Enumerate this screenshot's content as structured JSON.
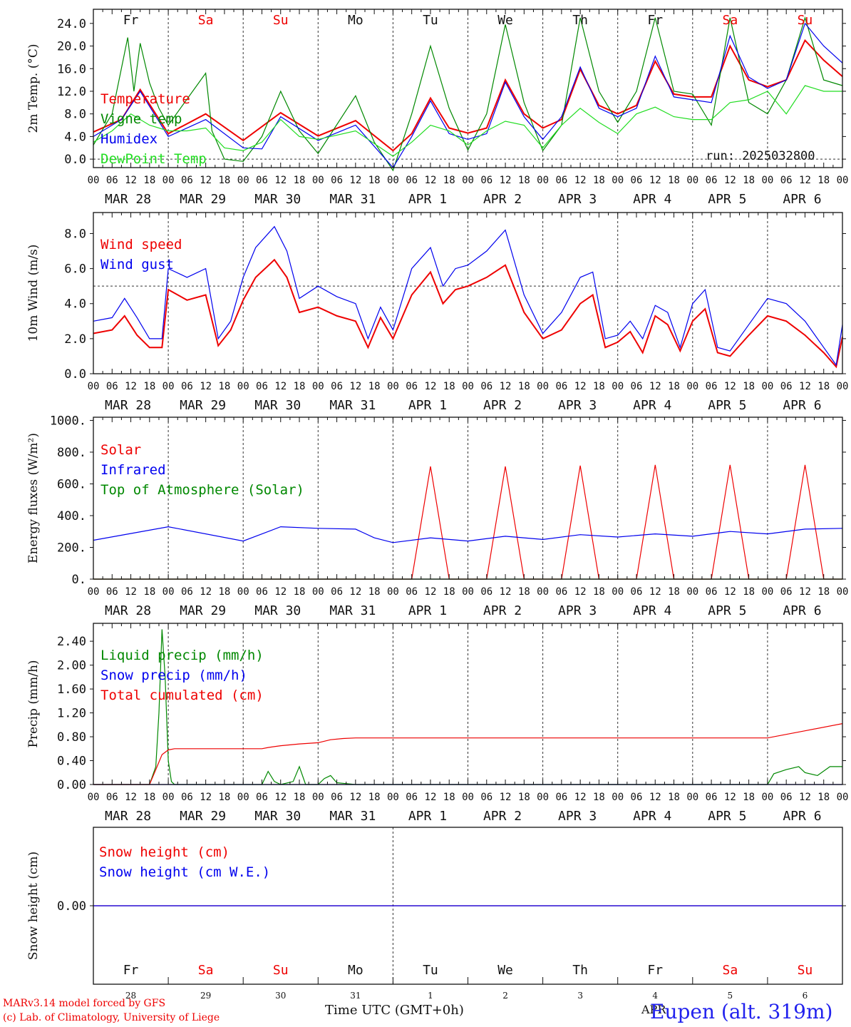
{
  "run_label": "run: 2025032800",
  "credit_line1": "MARv3.14 model forced by GFS",
  "credit_line2": "(c) Lab. of Climatology, University of Liege",
  "x_title": "Time UTC (GMT+0h)",
  "station": "Eupen (alt. 319m)",
  "bottom_month": "APR",
  "colors": {
    "red": "#ee0000",
    "blue": "#0000ee",
    "green": "#008800",
    "lightgreen": "#22dd22",
    "dark": "#333333",
    "title": "#2222ee"
  },
  "days": [
    {
      "dow": "Fr",
      "date": "MAR 28",
      "num": "28",
      "weekend": false
    },
    {
      "dow": "Sa",
      "date": "MAR 29",
      "num": "29",
      "weekend": true
    },
    {
      "dow": "Su",
      "date": "MAR 30",
      "num": "30",
      "weekend": true
    },
    {
      "dow": "Mo",
      "date": "MAR 31",
      "num": "31",
      "weekend": false
    },
    {
      "dow": "Tu",
      "date": "APR  1",
      "num": "1",
      "weekend": false
    },
    {
      "dow": "We",
      "date": "APR  2",
      "num": "2",
      "weekend": false
    },
    {
      "dow": "Th",
      "date": "APR  3",
      "num": "3",
      "weekend": false
    },
    {
      "dow": "Fr",
      "date": "APR  4",
      "num": "4",
      "weekend": false
    },
    {
      "dow": "Sa",
      "date": "APR  5",
      "num": "5",
      "weekend": true
    },
    {
      "dow": "Su",
      "date": "APR  6",
      "num": "6",
      "weekend": true
    }
  ],
  "hour_labels": [
    "00",
    "06",
    "12",
    "18"
  ],
  "chart_data": [
    {
      "type": "line",
      "ylabel": "2m Temp. (°C)",
      "ylim": [
        -1.5,
        26.5
      ],
      "yticks": [
        0,
        4,
        8,
        12,
        16,
        20,
        24
      ],
      "ytick_labels": [
        "0.0",
        "4.0",
        "8.0",
        "12.0",
        "16.0",
        "20.0",
        "24.0"
      ],
      "ref_line": 0,
      "show_dow": true,
      "x_unit": "hours since MAR 28 00 UTC",
      "series": [
        {
          "name": "Temperature",
          "color": "#ee0000",
          "x": [
            0,
            9,
            15,
            24,
            36,
            48,
            60,
            72,
            84,
            96,
            102,
            108,
            114,
            120,
            126,
            132,
            138,
            144,
            150,
            156,
            162,
            168,
            174,
            180,
            186,
            192,
            198,
            204,
            210,
            216,
            222,
            228,
            234,
            240
          ],
          "y": [
            4.8,
            7,
            12.3,
            4.5,
            8,
            3.3,
            8.2,
            4.1,
            6.8,
            1.5,
            4.5,
            10.8,
            5.5,
            4.6,
            5.5,
            14,
            8,
            5.5,
            7,
            15.9,
            9.5,
            8,
            9.5,
            17.3,
            11.5,
            11,
            11,
            20,
            14,
            12.8,
            14,
            21,
            17.5,
            14.6
          ]
        },
        {
          "name": "Vigne temp",
          "color": "#008800",
          "x": [
            0,
            6,
            11,
            13,
            15,
            18,
            21,
            24,
            36,
            38,
            42,
            48,
            54,
            60,
            66,
            72,
            84,
            90,
            96,
            102,
            108,
            114,
            120,
            126,
            132,
            138,
            144,
            150,
            156,
            162,
            168,
            174,
            180,
            186,
            192,
            198,
            204,
            210,
            216,
            222,
            228,
            234,
            240
          ],
          "y": [
            2.5,
            8,
            21.5,
            12,
            20.5,
            13.5,
            9,
            6,
            15.2,
            5,
            0,
            -0.4,
            4,
            12,
            5,
            1,
            11.2,
            3,
            -2,
            8,
            20,
            9,
            1.6,
            8,
            23.8,
            10,
            1.5,
            6,
            25,
            12,
            6.5,
            12,
            25,
            12,
            11.5,
            6,
            25,
            10,
            8,
            14,
            25,
            14,
            13
          ]
        },
        {
          "name": "Humidex",
          "color": "#0000ee",
          "x": [
            0,
            9,
            15,
            24,
            36,
            48,
            54,
            60,
            72,
            84,
            96,
            102,
            108,
            114,
            120,
            126,
            132,
            138,
            144,
            150,
            156,
            162,
            168,
            174,
            180,
            186,
            192,
            198,
            204,
            210,
            216,
            222,
            228,
            234,
            240
          ],
          "y": [
            4,
            7,
            12,
            4,
            7,
            2,
            1.8,
            7.5,
            3.3,
            6,
            -1.5,
            4,
            10.3,
            4.5,
            3.5,
            4.5,
            13.6,
            7.5,
            3.5,
            7.5,
            16.3,
            9,
            7.5,
            9,
            18.2,
            11,
            10.5,
            10,
            21.8,
            14.5,
            12.5,
            14,
            24,
            20,
            17
          ]
        },
        {
          "name": "DewPoint Temp",
          "color": "#22dd22",
          "x": [
            0,
            6,
            12,
            18,
            24,
            30,
            36,
            42,
            48,
            54,
            60,
            66,
            72,
            84,
            96,
            102,
            108,
            114,
            120,
            126,
            132,
            138,
            144,
            150,
            156,
            162,
            168,
            174,
            180,
            186,
            192,
            198,
            204,
            210,
            216,
            222,
            228,
            234,
            240
          ],
          "y": [
            3,
            5,
            8,
            6,
            5,
            5,
            5.5,
            2,
            1.5,
            3,
            7,
            4,
            3.5,
            5,
            0.5,
            3,
            6,
            5,
            2.5,
            5,
            6.7,
            6,
            2,
            6,
            9,
            6.5,
            4.5,
            8,
            9.2,
            7.5,
            7,
            7,
            10,
            10.5,
            12,
            8,
            13,
            12,
            12
          ]
        }
      ]
    },
    {
      "type": "line",
      "ylabel": "10m Wind (m/s)",
      "ylim": [
        0,
        9.2
      ],
      "yticks": [
        0,
        2,
        4,
        6,
        8
      ],
      "ytick_labels": [
        "0.0",
        "2.0",
        "4.0",
        "6.0",
        "8.0"
      ],
      "ref_line": 5,
      "show_dow": false,
      "x_unit": "hours since MAR 28 00 UTC",
      "series": [
        {
          "name": "Wind speed",
          "color": "#ee0000",
          "x": [
            0,
            6,
            10,
            14,
            18,
            22,
            24,
            30,
            36,
            40,
            44,
            48,
            52,
            58,
            62,
            66,
            72,
            78,
            84,
            88,
            92,
            96,
            102,
            108,
            112,
            116,
            120,
            126,
            132,
            138,
            144,
            150,
            156,
            160,
            164,
            168,
            172,
            176,
            180,
            184,
            188,
            192,
            196,
            200,
            204,
            210,
            216,
            222,
            228,
            234,
            238,
            240
          ],
          "y": [
            2.3,
            2.5,
            3.3,
            2.2,
            1.5,
            1.5,
            4.8,
            4.2,
            4.5,
            1.6,
            2.5,
            4.2,
            5.5,
            6.5,
            5.5,
            3.5,
            3.8,
            3.3,
            3,
            1.5,
            3.2,
            2,
            4.5,
            5.8,
            4,
            4.8,
            5,
            5.5,
            6.2,
            3.5,
            2,
            2.5,
            4,
            4.5,
            1.5,
            1.8,
            2.4,
            1.2,
            3.3,
            2.8,
            1.3,
            3,
            3.7,
            1.2,
            1,
            2.2,
            3.3,
            3,
            2.2,
            1.2,
            0.4,
            2.1
          ]
        },
        {
          "name": "Wind gust",
          "color": "#0000ee",
          "x": [
            0,
            6,
            10,
            14,
            18,
            22,
            24,
            30,
            36,
            40,
            44,
            48,
            52,
            58,
            62,
            66,
            72,
            78,
            84,
            88,
            92,
            96,
            102,
            108,
            112,
            116,
            120,
            126,
            132,
            138,
            144,
            150,
            156,
            160,
            164,
            168,
            172,
            176,
            180,
            184,
            188,
            192,
            196,
            200,
            204,
            210,
            216,
            222,
            228,
            234,
            238,
            240
          ],
          "y": [
            3,
            3.2,
            4.3,
            3.2,
            2,
            2,
            6,
            5.5,
            6,
            2,
            3,
            5.5,
            7.2,
            8.4,
            7,
            4.3,
            5,
            4.4,
            4,
            2,
            3.8,
            2.5,
            6,
            7.2,
            5,
            6,
            6.2,
            7,
            8.2,
            4.5,
            2.3,
            3.5,
            5.5,
            5.8,
            2,
            2.2,
            3,
            2,
            3.9,
            3.5,
            1.5,
            4,
            4.8,
            1.5,
            1.3,
            2.8,
            4.3,
            4,
            3,
            1.5,
            0.5,
            2.8
          ]
        }
      ]
    },
    {
      "type": "line",
      "ylabel": "Energy fluxes (W/m²)",
      "ylim": [
        0,
        1020
      ],
      "yticks": [
        0,
        200,
        400,
        600,
        800,
        1000
      ],
      "ytick_labels": [
        "0.",
        "200.",
        "400.",
        "600.",
        "800.",
        "1000."
      ],
      "ref_line": null,
      "show_dow": false,
      "x_unit": "hours since MAR 28 00 UTC",
      "series": [
        {
          "name": "Solar",
          "color": "#ee0000",
          "x": [
            0,
            30,
            33,
            36,
            38,
            40,
            42,
            44,
            48,
            54,
            57,
            60,
            62,
            64,
            66,
            68,
            72,
            78,
            84,
            88,
            90,
            96,
            102,
            108,
            114,
            120,
            126,
            132,
            138,
            144,
            150,
            156,
            162,
            168,
            174,
            180,
            186,
            192,
            198,
            204,
            210,
            216,
            222,
            228,
            234,
            240
          ],
          "y": [
            0,
            0,
            0,
            0,
            0,
            0,
            0,
            0,
            0,
            0,
            0,
            0,
            0,
            0,
            0,
            0,
            0,
            0,
            0,
            0,
            0,
            0,
            0,
            710,
            0,
            0,
            0,
            710,
            0,
            0,
            0,
            715,
            0,
            0,
            0,
            720,
            0,
            0,
            0,
            720,
            0,
            0,
            0,
            720,
            0,
            0
          ]
        },
        {
          "name": "Infrared",
          "color": "#0000ee",
          "x": [
            0,
            24,
            48,
            60,
            72,
            84,
            90,
            96,
            108,
            120,
            132,
            144,
            156,
            168,
            180,
            192,
            204,
            216,
            228,
            240
          ],
          "y": [
            245,
            330,
            240,
            330,
            320,
            315,
            260,
            230,
            260,
            240,
            270,
            250,
            280,
            265,
            285,
            270,
            300,
            285,
            315,
            320
          ]
        },
        {
          "name": "Top of Atmosphere (Solar)",
          "color": "#008800",
          "x": [
            0,
            24,
            48,
            72,
            96,
            120,
            144,
            168,
            192,
            216,
            240
          ],
          "y": [
            0,
            0,
            0,
            0,
            0,
            0,
            0,
            0,
            0,
            0,
            0
          ]
        }
      ]
    },
    {
      "type": "line",
      "ylabel": "Precip (mm/h)",
      "ylim": [
        0,
        2.7
      ],
      "yticks": [
        0,
        0.4,
        0.8,
        1.2,
        1.6,
        2.0,
        2.4
      ],
      "ytick_labels": [
        "0.00",
        "0.40",
        "0.80",
        "1.20",
        "1.60",
        "2.00",
        "2.40"
      ],
      "ref_line": null,
      "show_dow": false,
      "x_unit": "hours since MAR 28 00 UTC",
      "series": [
        {
          "name": "Liquid precip (mm/h)",
          "color": "#008800",
          "x": [
            0,
            18,
            20,
            21,
            22,
            23,
            24,
            25,
            26,
            30,
            54,
            56,
            58,
            60,
            64,
            66,
            68,
            72,
            74,
            76,
            78,
            80,
            84,
            90,
            216,
            218,
            222,
            226,
            228,
            232,
            236,
            240
          ],
          "y": [
            0,
            0,
            0.3,
            1.2,
            2.6,
            1.8,
            0.4,
            0.05,
            0,
            0,
            0,
            0.22,
            0.05,
            0,
            0.05,
            0.3,
            0,
            0,
            0.1,
            0.15,
            0.03,
            0.02,
            0,
            0,
            0,
            0.18,
            0.25,
            0.3,
            0.2,
            0.15,
            0.3,
            0.3
          ]
        },
        {
          "name": "Snow precip (mm/h)",
          "color": "#0000ee",
          "x": [
            0,
            240
          ],
          "y": [
            0,
            0
          ]
        },
        {
          "name": "Total cumulated (cm)",
          "color": "#ee0000",
          "x": [
            0,
            18,
            20,
            22,
            24,
            26,
            30,
            48,
            54,
            56,
            60,
            66,
            72,
            76,
            80,
            84,
            96,
            144,
            192,
            216,
            228,
            240
          ],
          "y": [
            0,
            0,
            0.25,
            0.5,
            0.58,
            0.6,
            0.6,
            0.6,
            0.6,
            0.62,
            0.65,
            0.68,
            0.7,
            0.75,
            0.77,
            0.78,
            0.78,
            0.78,
            0.78,
            0.78,
            0.9,
            1.02
          ]
        }
      ]
    },
    {
      "type": "line",
      "ylabel": "Snow height (cm)",
      "ylim": [
        -1,
        1
      ],
      "yticks": [
        0
      ],
      "ytick_labels": [
        "0.00"
      ],
      "ref_line": null,
      "show_dow": false,
      "x_unit": "hours since MAR 28 00 UTC",
      "series": [
        {
          "name": "Snow height (cm)",
          "color": "#ee0000",
          "x": [
            0,
            240
          ],
          "y": [
            0,
            0
          ]
        },
        {
          "name": "Snow height (cm W.E.)",
          "color": "#0000ee",
          "x": [
            0,
            240
          ],
          "y": [
            0,
            0
          ]
        }
      ]
    }
  ]
}
